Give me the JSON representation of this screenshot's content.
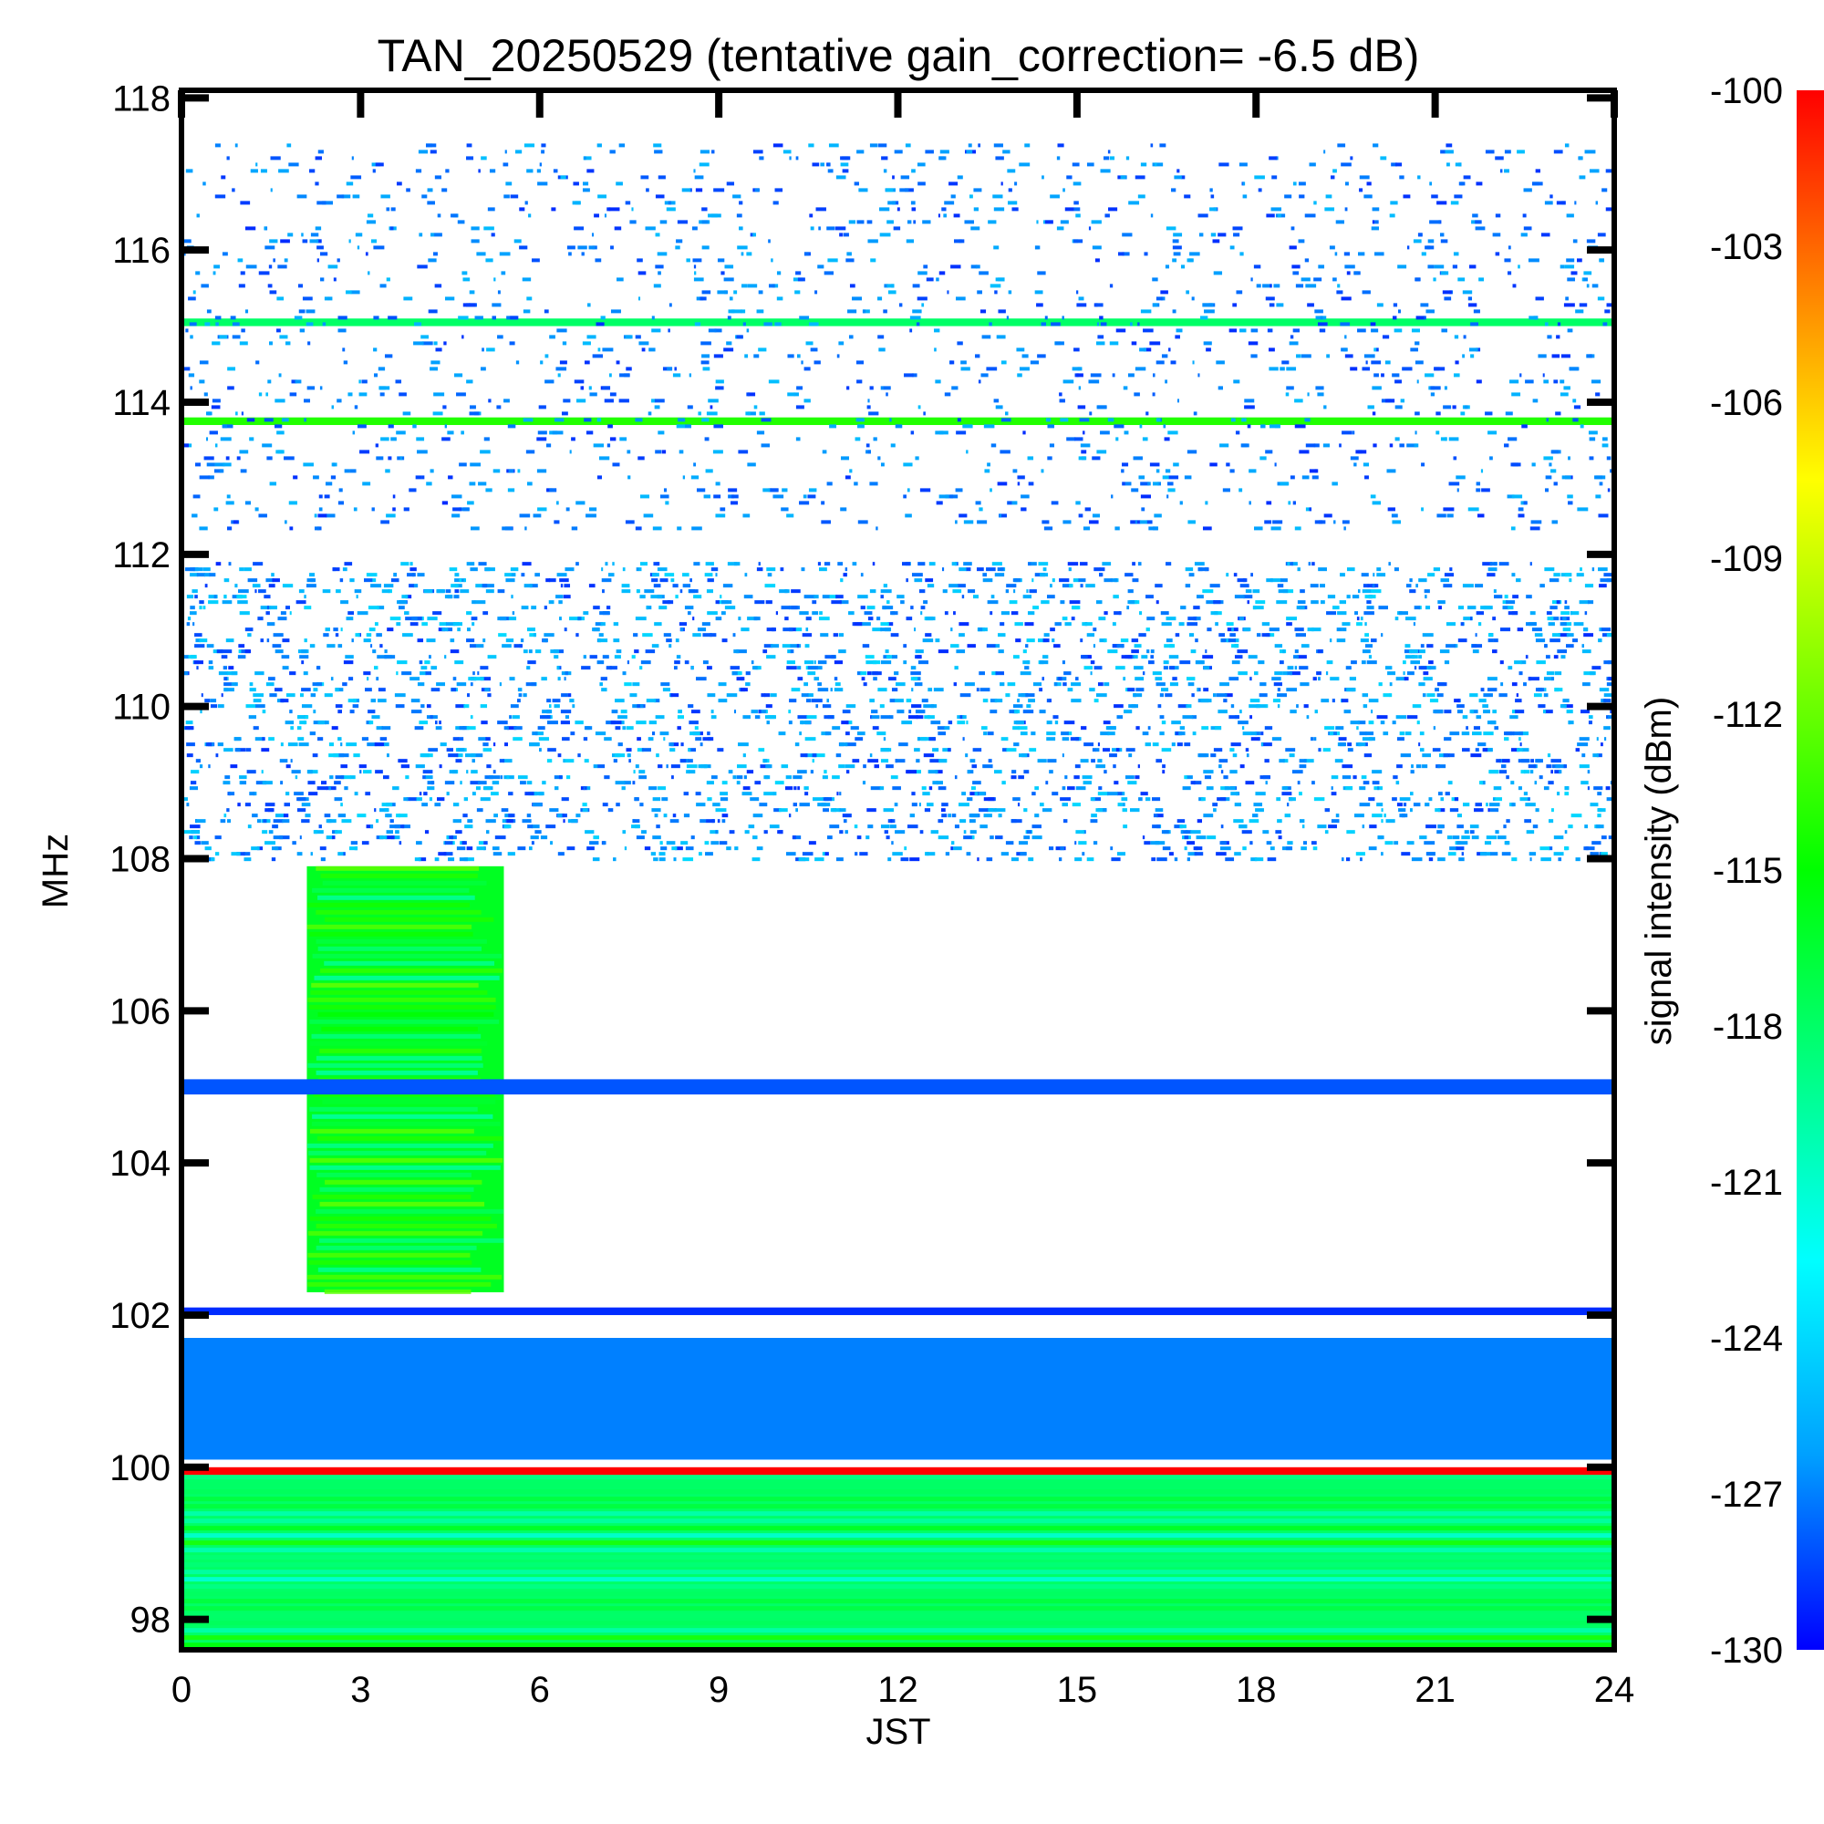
{
  "chart_data": {
    "type": "heatmap",
    "title": "TAN_20250529 (tentative gain_correction= -6.5 dB)",
    "xlabel": "JST",
    "ylabel": "MHz",
    "colorbar_label": "signal intensity (dBm)",
    "xlim": [
      0,
      24
    ],
    "ylim": [
      97.6,
      118.1
    ],
    "x_ticks": [
      "0",
      "3",
      "6",
      "9",
      "12",
      "15",
      "18",
      "21",
      "24"
    ],
    "y_ticks": [
      "98",
      "100",
      "102",
      "104",
      "106",
      "108",
      "110",
      "112",
      "114",
      "116",
      "118"
    ],
    "colorbar_range": [
      -130,
      -100
    ],
    "colorbar_ticks": [
      "-100",
      "-103",
      "-106",
      "-109",
      "-112",
      "-115",
      "-118",
      "-121",
      "-124",
      "-127",
      "-130"
    ],
    "colormap": [
      "#0000ff",
      "#00a0ff",
      "#00ffff",
      "#00ff80",
      "#00ff00",
      "#80ff00",
      "#ffff00",
      "#ff8000",
      "#ff0000"
    ],
    "background_color": "#ffffff",
    "grid": false,
    "bands": [
      {
        "from_mhz": 97.6,
        "to_mhz": 99.9,
        "from_jst": 0,
        "to_jst": 24,
        "level_dbm": -118,
        "note": "continuous"
      },
      {
        "from_mhz": 99.9,
        "to_mhz": 100.0,
        "from_jst": 0,
        "to_jst": 24,
        "level_dbm": -100
      },
      {
        "from_mhz": 100.1,
        "to_mhz": 101.7,
        "from_jst": 0,
        "to_jst": 24,
        "level_dbm": -127
      },
      {
        "from_mhz": 102.0,
        "to_mhz": 102.1,
        "from_jst": 0,
        "to_jst": 24,
        "level_dbm": -129
      },
      {
        "from_mhz": 102.3,
        "to_mhz": 107.9,
        "from_jst": 2.1,
        "to_jst": 5.4,
        "level_dbm": -116,
        "note": "night-time burst"
      },
      {
        "from_mhz": 104.9,
        "to_mhz": 105.1,
        "from_jst": 0,
        "to_jst": 24,
        "level_dbm": -128
      },
      {
        "from_mhz": 108.0,
        "to_mhz": 111.9,
        "from_jst": 0,
        "to_jst": 24,
        "level_dbm": -129,
        "note": "dense speckle"
      },
      {
        "from_mhz": 112.3,
        "to_mhz": 117.4,
        "from_jst": 0,
        "to_jst": 24,
        "level_dbm": -129,
        "note": "sparse speckle"
      },
      {
        "from_mhz": 113.7,
        "to_mhz": 113.8,
        "from_jst": 0,
        "to_jst": 24,
        "level_dbm": -114
      },
      {
        "from_mhz": 115.0,
        "to_mhz": 115.1,
        "from_jst": 0,
        "to_jst": 24,
        "level_dbm": -118
      }
    ]
  }
}
